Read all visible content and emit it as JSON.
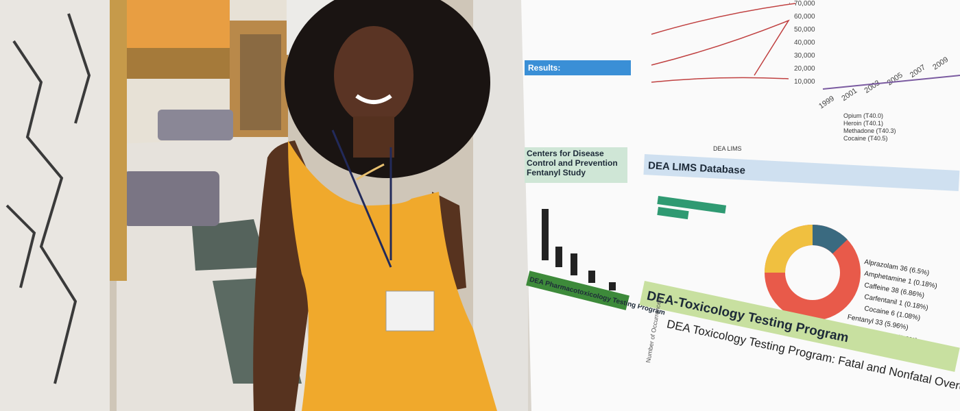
{
  "poster": {
    "results_heading": "Results:",
    "cdc_heading": "Centers for Disease Control and Prevention Fentanyl Study",
    "pharm_heading": "DEA Pharmacotoxicology Testing Program",
    "lims_heading": "DEA LIMS Database",
    "tox_heading": "DEA-Toxicology Testing Program",
    "tox_chart_title": "DEA Toxicology Testing Program: Fatal and Nonfatal Overdoses Involving",
    "tox_y_label": "Number of Occurrences",
    "right_axis_ticks": [
      "70,000",
      "60,000",
      "50,000",
      "40,000",
      "30,000",
      "20,000",
      "10,000"
    ],
    "year_ticks": [
      "1999",
      "2001",
      "2003",
      "2005",
      "2007",
      "2009"
    ],
    "donut_labels": [
      "Alprazolam 36 (6.5%)",
      "Amphetamine 1 (0.18%)",
      "Caffeine 38 (6.86%)",
      "Carfentanil 1 (0.18%)",
      "Cocaine 6 (1.08%)",
      "Fentanyl 33 (5.96%)",
      "Flualprazolam 5 (0.9%)"
    ],
    "legend_items": [
      "Opium (T40.0)",
      "Heroin (T40.1)",
      "Methadone (T40.3)",
      "Cocaine (T40.5)",
      "DEA LIMS"
    ]
  }
}
